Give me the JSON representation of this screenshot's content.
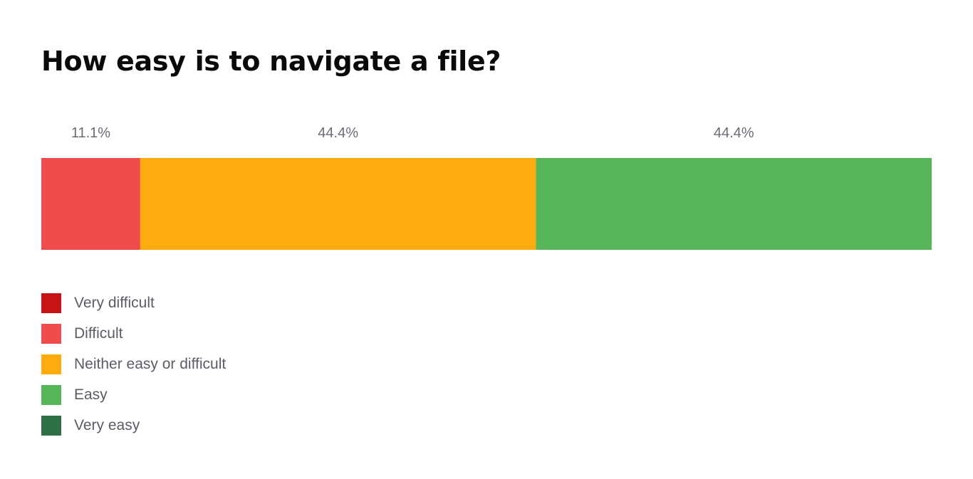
{
  "chart_data": {
    "type": "bar",
    "orientation": "horizontal-stacked-100",
    "title": "How easy is to navigate a file?",
    "categories": [
      "Very difficult",
      "Difficult",
      "Neither easy or difficult",
      "Easy",
      "Very easy"
    ],
    "values": [
      0,
      11.1,
      44.4,
      44.4,
      0
    ],
    "value_labels": [
      "",
      "11.1%",
      "44.4%",
      "44.4%",
      ""
    ],
    "colors": [
      "#c61315",
      "#f04b4d",
      "#feab10",
      "#57b55a",
      "#2e6f45"
    ],
    "units": "%",
    "xlim": [
      0,
      100
    ],
    "legend": "bottom-left",
    "grid": false
  }
}
